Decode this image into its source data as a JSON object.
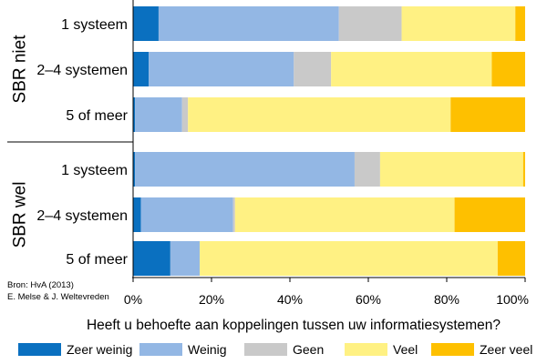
{
  "chart_data": {
    "type": "bar",
    "orientation": "horizontal",
    "stacked": true,
    "xlabel": "Heeft u behoefte aan koppelingen tussen uw informatiesystemen?",
    "xlim": [
      0,
      100
    ],
    "x_ticks": [
      "0%",
      "20%",
      "40%",
      "60%",
      "80%",
      "100%"
    ],
    "grid": false,
    "legend_position": "bottom",
    "groups": [
      {
        "name": "SBR niet",
        "categories": [
          "1 systeem",
          "2–4 systemen",
          "5 of meer"
        ]
      },
      {
        "name": "SBR wel",
        "categories": [
          "1 systeem",
          "2–4 systemen",
          "5 of meer"
        ]
      }
    ],
    "series": [
      {
        "name": "Zeer weinig",
        "color": "#0a70c0",
        "values": [
          6.5,
          4,
          0.5,
          0.5,
          2,
          9.5
        ]
      },
      {
        "name": "Weinig",
        "color": "#93b7e4",
        "values": [
          46,
          37,
          12,
          56,
          23.5,
          7.5
        ]
      },
      {
        "name": "Geen",
        "color": "#c9c9c9",
        "values": [
          16,
          9.5,
          1.5,
          6.5,
          0.5,
          0
        ]
      },
      {
        "name": "Veel",
        "color": "#fff183",
        "values": [
          29,
          41,
          67,
          36.5,
          56,
          76
        ]
      },
      {
        "name": "Zeer veel",
        "color": "#fec000",
        "values": [
          2.5,
          8.5,
          19,
          0.5,
          18,
          7
        ]
      }
    ]
  },
  "source": {
    "line1": "Bron: HvA (2013)",
    "line2": "E. Melse & J. Weltevreden"
  }
}
